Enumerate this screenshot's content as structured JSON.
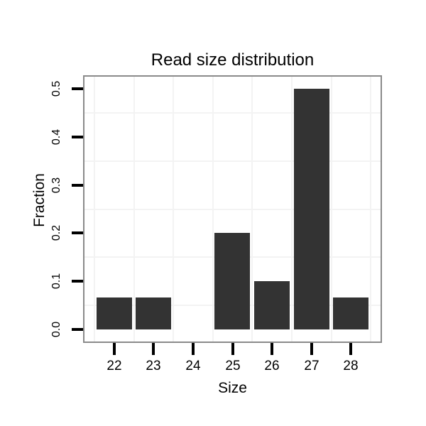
{
  "chart_data": {
    "type": "bar",
    "title": "Read size distribution",
    "xlabel": "Size",
    "ylabel": "Fraction",
    "categories": [
      "22",
      "23",
      "24",
      "25",
      "26",
      "27",
      "28"
    ],
    "values": [
      0.067,
      0.067,
      0,
      0.2,
      0.1,
      0.5,
      0.067
    ],
    "y_ticks": [
      0,
      0.1,
      0.2,
      0.3,
      0.4,
      0.5
    ],
    "y_tick_labels": [
      "0.0",
      "0.1",
      "0.2",
      "0.3",
      "0.4",
      "0.5"
    ],
    "ylim": [
      -0.025,
      0.525
    ],
    "y_minor_gridlines": [
      0.05,
      0.15,
      0.25,
      0.35,
      0.45
    ],
    "x_gridlines_between_categories": true,
    "grid": "minor-only",
    "legend": "none",
    "colors": {
      "bar": "#333333",
      "panel_border": "#8a8a8a",
      "gridline": "#f3f3f3",
      "tick": "#000000",
      "text": "#000000",
      "background": "#ffffff"
    }
  }
}
